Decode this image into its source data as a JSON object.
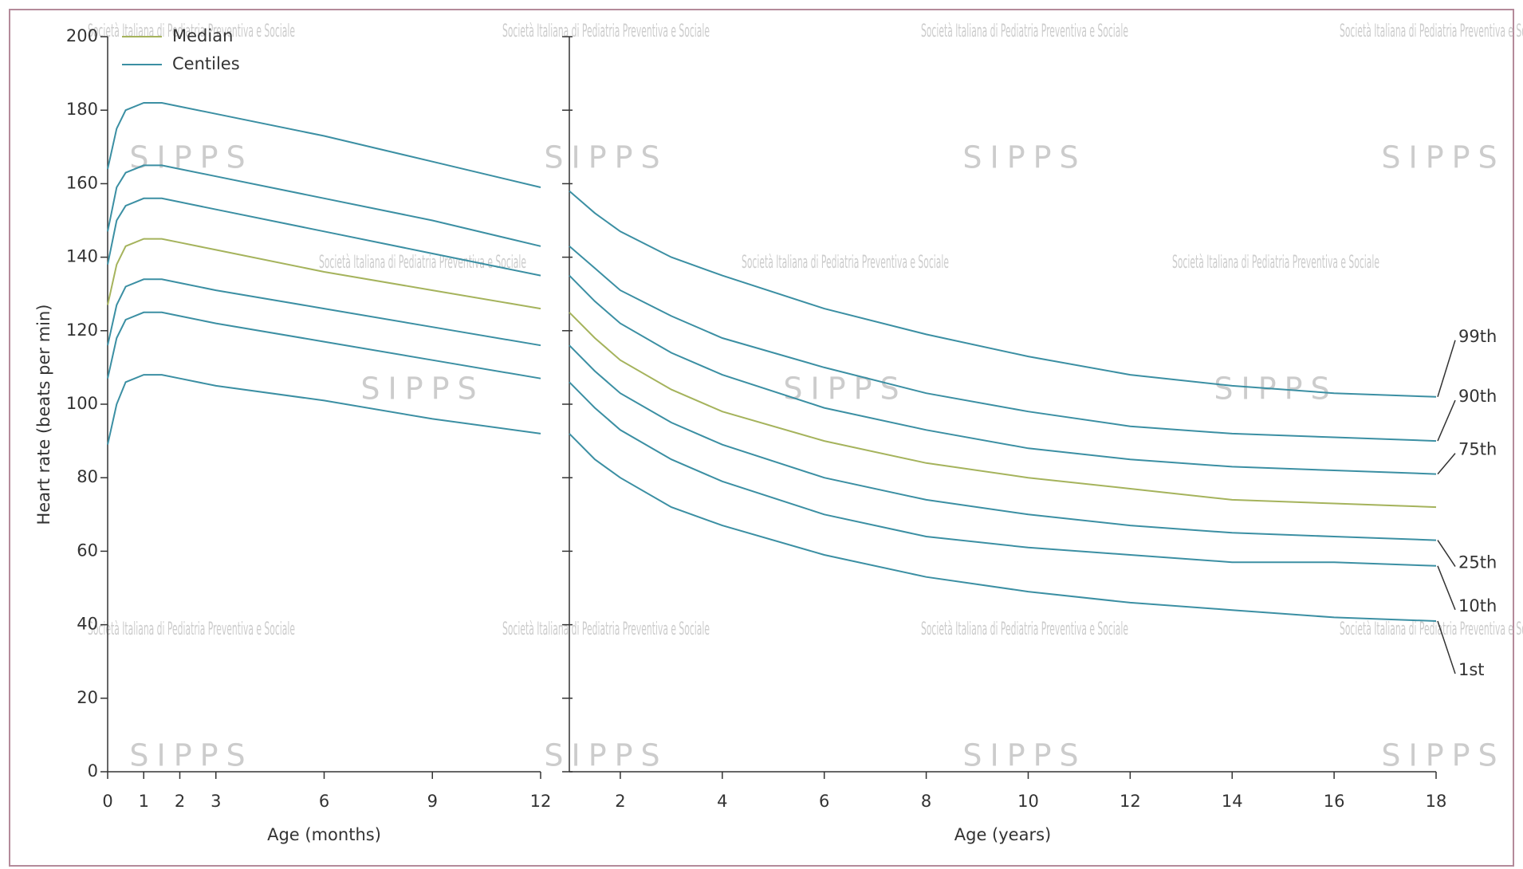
{
  "chart_data": [
    {
      "type": "line",
      "ylabel": "Heart rate (beats per min)",
      "xlabel": "Age (months)",
      "legend": [
        {
          "label": "Median",
          "color": "#a5b35c"
        },
        {
          "label": "Centiles",
          "color": "#3b8fa3"
        }
      ],
      "x": [
        0,
        0.25,
        0.5,
        1,
        1.5,
        2,
        3,
        6,
        9,
        12
      ],
      "xlim": [
        0,
        12
      ],
      "xticks": [
        0,
        1,
        2,
        3,
        6,
        9,
        12
      ],
      "ylim": [
        0,
        200
      ],
      "yticks": [
        0,
        20,
        40,
        60,
        80,
        100,
        120,
        140,
        160,
        180,
        200
      ],
      "series": [
        {
          "color": "#3b8fa3",
          "values": [
            164,
            175,
            180,
            182,
            182,
            181,
            179,
            173,
            166,
            159
          ]
        },
        {
          "color": "#3b8fa3",
          "values": [
            147,
            159,
            163,
            165,
            165,
            164,
            162,
            156,
            150,
            143
          ]
        },
        {
          "color": "#3b8fa3",
          "values": [
            138,
            150,
            154,
            156,
            156,
            155,
            153,
            147,
            141,
            135
          ]
        },
        {
          "color": "#a5b35c",
          "values": [
            127,
            138,
            143,
            145,
            145,
            144,
            142,
            136,
            131,
            126
          ]
        },
        {
          "color": "#3b8fa3",
          "values": [
            116,
            127,
            132,
            134,
            134,
            133,
            131,
            126,
            121,
            116
          ]
        },
        {
          "color": "#3b8fa3",
          "values": [
            107,
            118,
            123,
            125,
            125,
            124,
            122,
            117,
            112,
            107
          ]
        },
        {
          "color": "#3b8fa3",
          "values": [
            89,
            100,
            106,
            108,
            108,
            107,
            105,
            101,
            96,
            92
          ]
        }
      ]
    },
    {
      "type": "line",
      "xlabel": "Age (years)",
      "x": [
        1,
        1.5,
        2,
        3,
        4,
        6,
        8,
        10,
        12,
        14,
        16,
        18
      ],
      "xlim": [
        1,
        18
      ],
      "xticks": [
        2,
        4,
        6,
        8,
        10,
        12,
        14,
        16,
        18
      ],
      "ylim": [
        0,
        200
      ],
      "yticks": [
        0,
        20,
        40,
        60,
        80,
        100,
        120,
        140,
        160,
        180,
        200
      ],
      "series": [
        {
          "name": "99th",
          "color": "#3b8fa3",
          "values": [
            158,
            152,
            147,
            140,
            135,
            126,
            119,
            113,
            108,
            105,
            103,
            102
          ]
        },
        {
          "name": "90th",
          "color": "#3b8fa3",
          "values": [
            143,
            137,
            131,
            124,
            118,
            110,
            103,
            98,
            94,
            92,
            91,
            90
          ]
        },
        {
          "name": "75th",
          "color": "#3b8fa3",
          "values": [
            135,
            128,
            122,
            114,
            108,
            99,
            93,
            88,
            85,
            83,
            82,
            81
          ]
        },
        {
          "color": "#a5b35c",
          "values": [
            125,
            118,
            112,
            104,
            98,
            90,
            84,
            80,
            77,
            74,
            73,
            72
          ]
        },
        {
          "name": "25th",
          "color": "#3b8fa3",
          "values": [
            116,
            109,
            103,
            95,
            89,
            80,
            74,
            70,
            67,
            65,
            64,
            63
          ]
        },
        {
          "name": "10th",
          "color": "#3b8fa3",
          "values": [
            106,
            99,
            93,
            85,
            79,
            70,
            64,
            61,
            59,
            57,
            57,
            56
          ]
        },
        {
          "name": "1st",
          "color": "#3b8fa3",
          "values": [
            92,
            85,
            80,
            72,
            67,
            59,
            53,
            49,
            46,
            44,
            42,
            41
          ]
        }
      ]
    }
  ],
  "watermark": {
    "text": "Società Italiana di Pediatria Preventiva e Sociale",
    "logo": "SIPPS"
  }
}
